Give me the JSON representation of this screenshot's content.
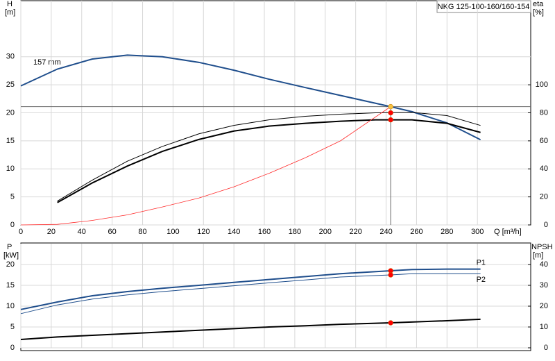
{
  "chart_data": [
    {
      "type": "line",
      "title": "NKG 125-100-160/160-154",
      "annotation": "157 mm",
      "y_label": "H",
      "y_unit": "[m]",
      "y2_label": "eta",
      "y2_unit": "[%]",
      "x_label": "Q [m³/h]",
      "xlim": [
        0,
        335
      ],
      "xticks": [
        0,
        20,
        40,
        60,
        80,
        100,
        120,
        140,
        160,
        180,
        200,
        220,
        240,
        260,
        280,
        300
      ],
      "ylim": [
        0,
        40
      ],
      "yticks": [
        0,
        5,
        10,
        15,
        20,
        25,
        30
      ],
      "y2lim": [
        0,
        160
      ],
      "y2ticks": [
        0,
        20,
        40,
        60,
        80,
        100
      ],
      "grid": true,
      "series": [
        {
          "color": "#1f4e8c",
          "width": 2,
          "x": [
            0,
            24,
            47,
            70,
            93,
            117,
            140,
            163,
            187,
            210,
            243,
            257,
            280,
            302
          ],
          "values": [
            24.8,
            27.8,
            29.6,
            30.3,
            30,
            29,
            27.6,
            26,
            24.5,
            23.1,
            21.1,
            20.2,
            18.2,
            15.2
          ]
        },
        {
          "color": "#000000",
          "width": 1,
          "axis": "y2",
          "x": [
            24,
            47,
            70,
            93,
            117,
            140,
            163,
            187,
            210,
            233,
            257,
            280,
            302
          ],
          "values": [
            17,
            32,
            45.5,
            56,
            65,
            71,
            75,
            77.5,
            79,
            80,
            80.3,
            78,
            71
          ]
        },
        {
          "color": "#000000",
          "width": 2,
          "axis": "y2",
          "x": [
            24,
            47,
            70,
            93,
            117,
            140,
            163,
            187,
            210,
            233,
            257,
            280,
            302
          ],
          "values": [
            16,
            30,
            42,
            52.5,
            61,
            67,
            70.5,
            72.5,
            74,
            75,
            75,
            72.5,
            66
          ]
        },
        {
          "color": "#ff2a2a",
          "width": 0.8,
          "x": [
            0,
            24,
            47,
            70,
            93,
            117,
            140,
            163,
            187,
            210,
            243
          ],
          "values": [
            0,
            0.1,
            0.8,
            1.8,
            3.2,
            4.8,
            6.8,
            9.2,
            12,
            15,
            21.1
          ]
        }
      ],
      "operating_points": [
        {
          "x": 243,
          "y": 21.1,
          "color": "#f5c242"
        },
        {
          "x": 243,
          "y": 80,
          "axis": "y2",
          "color": "#ff0000"
        },
        {
          "x": 243,
          "y": 75,
          "axis": "y2",
          "color": "#ff0000"
        }
      ]
    },
    {
      "type": "line",
      "y_label": "P",
      "y_unit": "[kW]",
      "y2_label": "NPSH",
      "y2_unit": "[m]",
      "xlim": [
        0,
        335
      ],
      "ylim": [
        0,
        25
      ],
      "yticks": [
        0,
        5,
        10,
        15,
        20
      ],
      "y2lim": [
        0,
        50
      ],
      "y2ticks": [
        0,
        10,
        20,
        30,
        40
      ],
      "grid": true,
      "series": [
        {
          "name": "P1",
          "color": "#1f4e8c",
          "width": 2,
          "x": [
            0,
            24,
            47,
            70,
            93,
            117,
            140,
            163,
            187,
            210,
            243,
            257,
            280,
            302
          ],
          "values": [
            9.2,
            11,
            12.5,
            13.5,
            14.3,
            15,
            15.7,
            16.4,
            17.1,
            17.8,
            18.5,
            18.8,
            18.9,
            18.9
          ]
        },
        {
          "name": "P2",
          "color": "#1f4e8c",
          "width": 1,
          "x": [
            0,
            24,
            47,
            70,
            93,
            117,
            140,
            163,
            187,
            210,
            243,
            257,
            280,
            302
          ],
          "values": [
            8.2,
            10.3,
            11.7,
            12.7,
            13.5,
            14.2,
            14.9,
            15.6,
            16.3,
            17,
            17.5,
            17.8,
            17.8,
            17.8
          ]
        },
        {
          "color": "#000000",
          "width": 2,
          "axis": "y2",
          "x": [
            0,
            24,
            47,
            70,
            93,
            117,
            140,
            163,
            187,
            210,
            243,
            280,
            302
          ],
          "values": [
            4,
            5.2,
            6,
            6.8,
            7.6,
            8.4,
            9.2,
            10,
            10.6,
            11.3,
            12,
            13,
            13.7
          ]
        }
      ],
      "operating_points": [
        {
          "x": 243,
          "y": 18.5,
          "color": "#ff0000"
        },
        {
          "x": 243,
          "y": 17.5,
          "color": "#ff0000"
        },
        {
          "x": 243,
          "y": 12,
          "axis": "y2",
          "color": "#ff0000"
        }
      ]
    }
  ]
}
